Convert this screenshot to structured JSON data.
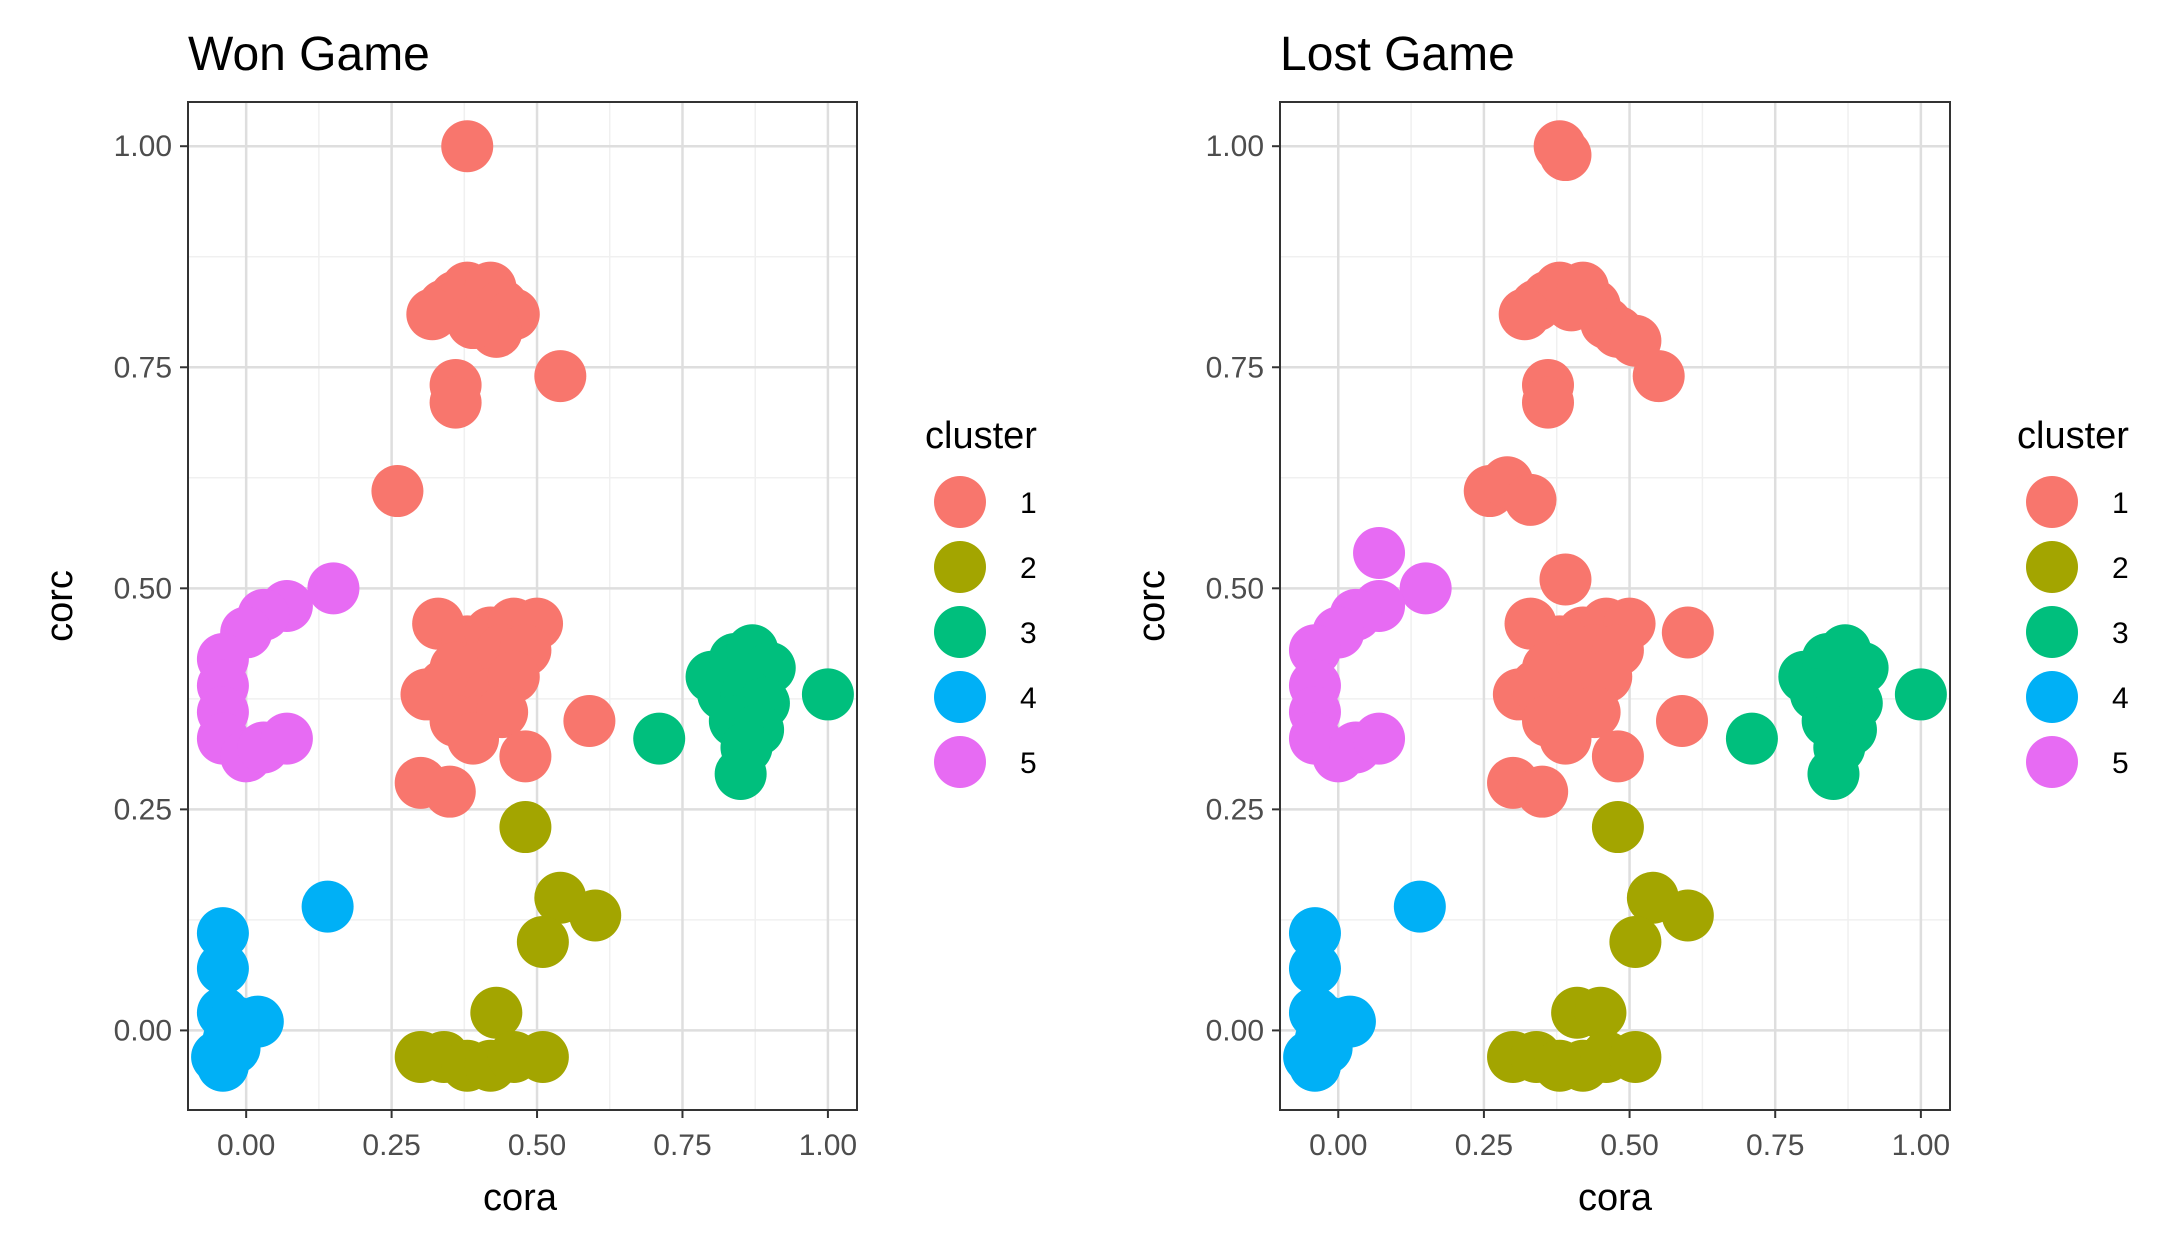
{
  "chart_data": [
    {
      "type": "scatter",
      "title": "Won Game",
      "xlabel": "cora",
      "ylabel": "corc",
      "xlim": [
        -0.1,
        1.05
      ],
      "ylim": [
        -0.09,
        1.05
      ],
      "xticks": [
        "0.00",
        "0.25",
        "0.50",
        "0.75",
        "1.00"
      ],
      "yticks": [
        "0.00",
        "0.25",
        "0.50",
        "0.75",
        "1.00"
      ],
      "grid": true,
      "legend": {
        "title": "cluster",
        "placement": "right"
      },
      "series": [
        {
          "name": "1",
          "color": "#F8766D",
          "points": [
            [
              0.38,
              1.0
            ],
            [
              0.34,
              0.82
            ],
            [
              0.36,
              0.83
            ],
            [
              0.38,
              0.84
            ],
            [
              0.4,
              0.82
            ],
            [
              0.42,
              0.84
            ],
            [
              0.44,
              0.82
            ],
            [
              0.46,
              0.81
            ],
            [
              0.43,
              0.79
            ],
            [
              0.39,
              0.8
            ],
            [
              0.32,
              0.81
            ],
            [
              0.36,
              0.73
            ],
            [
              0.36,
              0.71
            ],
            [
              0.54,
              0.74
            ],
            [
              0.26,
              0.61
            ],
            [
              0.33,
              0.46
            ],
            [
              0.38,
              0.44
            ],
            [
              0.42,
              0.45
            ],
            [
              0.46,
              0.46
            ],
            [
              0.5,
              0.46
            ],
            [
              0.36,
              0.41
            ],
            [
              0.4,
              0.41
            ],
            [
              0.44,
              0.43
            ],
            [
              0.48,
              0.43
            ],
            [
              0.31,
              0.38
            ],
            [
              0.34,
              0.39
            ],
            [
              0.38,
              0.37
            ],
            [
              0.42,
              0.38
            ],
            [
              0.46,
              0.4
            ],
            [
              0.36,
              0.35
            ],
            [
              0.4,
              0.35
            ],
            [
              0.44,
              0.36
            ],
            [
              0.39,
              0.33
            ],
            [
              0.48,
              0.31
            ],
            [
              0.59,
              0.35
            ],
            [
              0.3,
              0.28
            ],
            [
              0.35,
              0.27
            ]
          ]
        },
        {
          "name": "2",
          "color": "#A3A500",
          "points": [
            [
              0.48,
              0.23
            ],
            [
              0.54,
              0.15
            ],
            [
              0.6,
              0.13
            ],
            [
              0.51,
              0.1
            ],
            [
              0.43,
              0.02
            ],
            [
              0.3,
              -0.03
            ],
            [
              0.34,
              -0.03
            ],
            [
              0.38,
              -0.04
            ],
            [
              0.42,
              -0.04
            ],
            [
              0.46,
              -0.03
            ],
            [
              0.51,
              -0.03
            ]
          ]
        },
        {
          "name": "3",
          "color": "#00BF7D",
          "points": [
            [
              0.8,
              0.4
            ],
            [
              0.84,
              0.42
            ],
            [
              0.87,
              0.43
            ],
            [
              0.9,
              0.41
            ],
            [
              0.82,
              0.38
            ],
            [
              0.86,
              0.38
            ],
            [
              0.89,
              0.37
            ],
            [
              0.84,
              0.35
            ],
            [
              0.88,
              0.34
            ],
            [
              0.86,
              0.32
            ],
            [
              0.85,
              0.29
            ],
            [
              0.71,
              0.33
            ],
            [
              1.0,
              0.38
            ]
          ]
        },
        {
          "name": "4",
          "color": "#00B0F6",
          "points": [
            [
              0.14,
              0.14
            ],
            [
              -0.04,
              0.11
            ],
            [
              -0.04,
              0.07
            ],
            [
              -0.04,
              0.02
            ],
            [
              -0.02,
              0.01
            ],
            [
              0.02,
              0.01
            ],
            [
              -0.03,
              -0.01
            ],
            [
              -0.05,
              -0.03
            ],
            [
              -0.04,
              -0.04
            ],
            [
              -0.02,
              -0.02
            ]
          ]
        },
        {
          "name": "5",
          "color": "#E76BF3",
          "points": [
            [
              0.15,
              0.5
            ],
            [
              0.07,
              0.48
            ],
            [
              0.03,
              0.47
            ],
            [
              0.0,
              0.45
            ],
            [
              -0.04,
              0.42
            ],
            [
              -0.04,
              0.39
            ],
            [
              -0.04,
              0.36
            ],
            [
              -0.04,
              0.33
            ],
            [
              0.0,
              0.31
            ],
            [
              0.03,
              0.32
            ],
            [
              0.07,
              0.33
            ]
          ]
        }
      ]
    },
    {
      "type": "scatter",
      "title": "Lost Game",
      "xlabel": "cora",
      "ylabel": "corc",
      "xlim": [
        -0.1,
        1.05
      ],
      "ylim": [
        -0.09,
        1.05
      ],
      "xticks": [
        "0.00",
        "0.25",
        "0.50",
        "0.75",
        "1.00"
      ],
      "yticks": [
        "0.00",
        "0.25",
        "0.50",
        "0.75",
        "1.00"
      ],
      "grid": true,
      "legend": {
        "title": "cluster",
        "placement": "right"
      },
      "series": [
        {
          "name": "1",
          "color": "#F8766D",
          "points": [
            [
              0.38,
              1.0
            ],
            [
              0.39,
              0.99
            ],
            [
              0.34,
              0.82
            ],
            [
              0.36,
              0.83
            ],
            [
              0.38,
              0.84
            ],
            [
              0.4,
              0.82
            ],
            [
              0.42,
              0.84
            ],
            [
              0.44,
              0.82
            ],
            [
              0.46,
              0.8
            ],
            [
              0.48,
              0.79
            ],
            [
              0.51,
              0.78
            ],
            [
              0.55,
              0.74
            ],
            [
              0.32,
              0.81
            ],
            [
              0.36,
              0.73
            ],
            [
              0.36,
              0.71
            ],
            [
              0.26,
              0.61
            ],
            [
              0.29,
              0.62
            ],
            [
              0.33,
              0.6
            ],
            [
              0.39,
              0.51
            ],
            [
              0.33,
              0.46
            ],
            [
              0.38,
              0.44
            ],
            [
              0.42,
              0.45
            ],
            [
              0.46,
              0.46
            ],
            [
              0.5,
              0.46
            ],
            [
              0.6,
              0.45
            ],
            [
              0.36,
              0.41
            ],
            [
              0.4,
              0.41
            ],
            [
              0.44,
              0.43
            ],
            [
              0.48,
              0.43
            ],
            [
              0.31,
              0.38
            ],
            [
              0.34,
              0.39
            ],
            [
              0.38,
              0.37
            ],
            [
              0.42,
              0.38
            ],
            [
              0.46,
              0.4
            ],
            [
              0.36,
              0.35
            ],
            [
              0.4,
              0.35
            ],
            [
              0.44,
              0.36
            ],
            [
              0.39,
              0.33
            ],
            [
              0.48,
              0.31
            ],
            [
              0.59,
              0.35
            ],
            [
              0.3,
              0.28
            ],
            [
              0.35,
              0.27
            ]
          ]
        },
        {
          "name": "2",
          "color": "#A3A500",
          "points": [
            [
              0.48,
              0.23
            ],
            [
              0.54,
              0.15
            ],
            [
              0.6,
              0.13
            ],
            [
              0.51,
              0.1
            ],
            [
              0.41,
              0.02
            ],
            [
              0.45,
              0.02
            ],
            [
              0.3,
              -0.03
            ],
            [
              0.34,
              -0.03
            ],
            [
              0.38,
              -0.04
            ],
            [
              0.42,
              -0.04
            ],
            [
              0.46,
              -0.03
            ],
            [
              0.51,
              -0.03
            ]
          ]
        },
        {
          "name": "3",
          "color": "#00BF7D",
          "points": [
            [
              0.8,
              0.4
            ],
            [
              0.84,
              0.42
            ],
            [
              0.87,
              0.43
            ],
            [
              0.9,
              0.41
            ],
            [
              0.82,
              0.38
            ],
            [
              0.86,
              0.38
            ],
            [
              0.89,
              0.37
            ],
            [
              0.84,
              0.35
            ],
            [
              0.88,
              0.34
            ],
            [
              0.86,
              0.32
            ],
            [
              0.85,
              0.29
            ],
            [
              0.71,
              0.33
            ],
            [
              1.0,
              0.38
            ]
          ]
        },
        {
          "name": "4",
          "color": "#00B0F6",
          "points": [
            [
              0.14,
              0.14
            ],
            [
              -0.04,
              0.11
            ],
            [
              -0.04,
              0.07
            ],
            [
              -0.04,
              0.02
            ],
            [
              -0.02,
              0.01
            ],
            [
              0.02,
              0.01
            ],
            [
              -0.03,
              -0.01
            ],
            [
              -0.05,
              -0.03
            ],
            [
              -0.04,
              -0.04
            ],
            [
              -0.02,
              -0.02
            ]
          ]
        },
        {
          "name": "5",
          "color": "#E76BF3",
          "points": [
            [
              0.07,
              0.54
            ],
            [
              0.15,
              0.5
            ],
            [
              0.07,
              0.48
            ],
            [
              0.03,
              0.47
            ],
            [
              0.0,
              0.45
            ],
            [
              -0.04,
              0.43
            ],
            [
              -0.04,
              0.39
            ],
            [
              -0.04,
              0.36
            ],
            [
              -0.04,
              0.33
            ],
            [
              0.0,
              0.31
            ],
            [
              0.03,
              0.32
            ],
            [
              0.07,
              0.33
            ]
          ]
        }
      ]
    }
  ]
}
